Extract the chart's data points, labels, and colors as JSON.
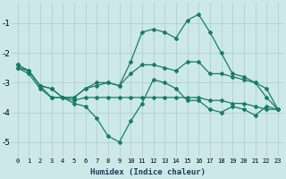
{
  "xlabel": "Humidex (Indice chaleur)",
  "bg_color": "#cce8e8",
  "grid_color": "#aacccc",
  "line_color": "#1a7a6a",
  "xlim": [
    -0.5,
    23.5
  ],
  "ylim": [
    -5.5,
    -0.3
  ],
  "yticks": [
    -5,
    -4,
    -3,
    -2,
    -1
  ],
  "xticks": [
    0,
    1,
    2,
    3,
    4,
    5,
    6,
    7,
    8,
    9,
    10,
    11,
    12,
    13,
    14,
    15,
    16,
    17,
    18,
    19,
    20,
    21,
    22,
    23
  ],
  "line1": {
    "x": [
      0,
      1,
      2,
      3,
      4,
      5,
      6,
      7,
      8,
      9,
      10,
      11,
      12,
      13,
      14,
      15,
      16,
      17,
      18,
      19,
      20,
      21,
      22,
      23
    ],
    "y": [
      -2.4,
      -2.6,
      -3.1,
      -3.5,
      -3.5,
      -3.7,
      -3.8,
      -4.2,
      -4.8,
      -5.0,
      -4.3,
      -3.7,
      -2.9,
      -3.0,
      -3.2,
      -3.6,
      -3.6,
      -3.9,
      -4.0,
      -3.8,
      -3.9,
      -4.1,
      -3.8,
      -3.9
    ]
  },
  "line2": {
    "x": [
      0,
      1,
      2,
      3,
      4,
      5,
      6,
      7,
      8,
      9,
      10,
      11,
      12,
      13,
      14,
      15,
      16,
      17,
      18,
      19,
      20,
      21,
      22,
      23
    ],
    "y": [
      -2.4,
      -2.6,
      -3.1,
      -3.2,
      -3.5,
      -3.5,
      -3.2,
      -3.0,
      -3.0,
      -3.1,
      -2.3,
      -1.3,
      -1.2,
      -1.3,
      -1.5,
      -0.9,
      -0.7,
      -1.3,
      -2.0,
      -2.7,
      -2.8,
      -3.0,
      -3.5,
      -3.9
    ]
  },
  "line3": {
    "x": [
      0,
      1,
      2,
      3,
      4,
      5,
      6,
      7,
      8,
      9,
      10,
      11,
      12,
      13,
      14,
      15,
      16,
      17,
      18,
      19,
      20,
      21,
      22,
      23
    ],
    "y": [
      -2.5,
      -2.6,
      -3.1,
      -3.2,
      -3.5,
      -3.5,
      -3.2,
      -3.1,
      -3.0,
      -3.1,
      -2.7,
      -2.4,
      -2.4,
      -2.5,
      -2.6,
      -2.3,
      -2.3,
      -2.7,
      -2.7,
      -2.8,
      -2.9,
      -3.0,
      -3.2,
      -3.9
    ]
  },
  "line4": {
    "x": [
      0,
      1,
      2,
      3,
      4,
      5,
      6,
      7,
      8,
      9,
      10,
      11,
      12,
      13,
      14,
      15,
      16,
      17,
      18,
      19,
      20,
      21,
      22,
      23
    ],
    "y": [
      -2.5,
      -2.7,
      -3.2,
      -3.5,
      -3.5,
      -3.6,
      -3.5,
      -3.5,
      -3.5,
      -3.5,
      -3.5,
      -3.5,
      -3.5,
      -3.5,
      -3.5,
      -3.5,
      -3.5,
      -3.6,
      -3.6,
      -3.7,
      -3.7,
      -3.8,
      -3.9,
      -3.9
    ]
  }
}
